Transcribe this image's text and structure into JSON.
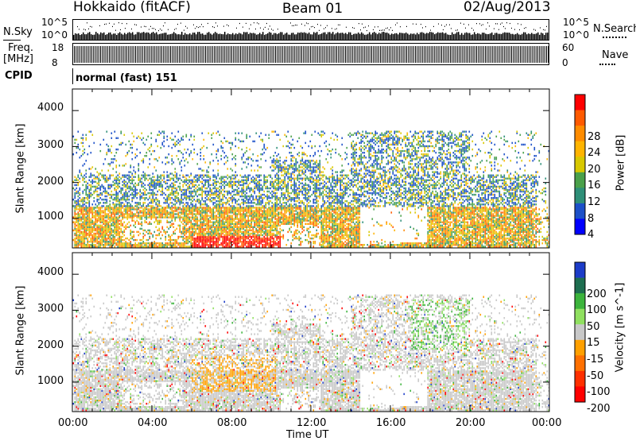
{
  "header": {
    "station": "Hokkaido (fitACF)",
    "beam": "Beam 01",
    "date": "02/Aug/2013"
  },
  "aux_panels": {
    "nsky_label": "N.Sky",
    "nsearch_label": "N.Search",
    "nsky_ticks": [
      "10^5",
      "10^0"
    ],
    "nsearch_ticks": [
      "10^5",
      "10^0"
    ],
    "freq_label_top": "Freq.",
    "freq_label_unit": "[MHz]",
    "freq_ticks": [
      "18",
      "8"
    ],
    "nave_label": "Nave",
    "nave_ticks": [
      "60",
      "0"
    ],
    "cpid_label": "CPID",
    "cpid_text": "normal (fast) 151"
  },
  "axes": {
    "ylabel": "Slant Range [km]",
    "yticks": [
      "4000",
      "3000",
      "2000",
      "1000"
    ],
    "xticks": [
      "00:00",
      "04:00",
      "08:00",
      "12:00",
      "16:00",
      "20:00",
      "00:00"
    ],
    "xlabel": "Time UT"
  },
  "power_scale": {
    "title": "Power [dB]",
    "ticks": [
      "28",
      "24",
      "20",
      "16",
      "12",
      "8",
      "4"
    ],
    "colors": [
      "#ff0000",
      "#ff5a00",
      "#ff8c00",
      "#ffb400",
      "#d8c800",
      "#4aa04a",
      "#2e8f78",
      "#1c50c8",
      "#0000ff"
    ]
  },
  "velocity_scale": {
    "title": "Velocity [m s^-1]",
    "ticks": [
      "200",
      "100",
      "50",
      "15",
      "-15",
      "-50",
      "-100",
      "-200"
    ],
    "colors": [
      "#1c3cc8",
      "#1e6e50",
      "#3cb43c",
      "#90e060",
      "#c8c8c8",
      "#ffa000",
      "#ff7000",
      "#ff3000",
      "#ff0000"
    ]
  },
  "chart_data": [
    {
      "type": "heatmap",
      "title": "Power",
      "xlabel": "Time UT",
      "ylabel": "Slant Range [km]",
      "xlim": [
        0,
        24
      ],
      "ylim": [
        180,
        4600
      ],
      "colorbar_label": "Power [dB]",
      "colorbar_range": [
        0,
        30
      ],
      "regions": [
        {
          "t0": 0.0,
          "t1": 24.0,
          "r0": 300,
          "r1": 1300,
          "level": "16-24 dB"
        },
        {
          "t0": 6.5,
          "t1": 10.0,
          "r0": 200,
          "r1": 500,
          "level": "28 dB"
        },
        {
          "t0": 0.0,
          "t1": 24.0,
          "r0": 1300,
          "r1": 2200,
          "level": "4-12 dB"
        },
        {
          "t0": 14.0,
          "t1": 20.0,
          "r0": 1600,
          "r1": 3400,
          "level": "4-12 dB"
        }
      ]
    },
    {
      "type": "heatmap",
      "title": "Velocity",
      "xlabel": "Time UT",
      "ylabel": "Slant Range [km]",
      "xlim": [
        0,
        24
      ],
      "ylim": [
        180,
        4600
      ],
      "colorbar_label": "Velocity [m s^-1]",
      "colorbar_range": [
        -250,
        250
      ],
      "regions": [
        {
          "t0": 0.0,
          "t1": 24.0,
          "r0": 300,
          "r1": 2000,
          "level": "-15 to 15 m/s"
        },
        {
          "t0": 6.0,
          "t1": 10.0,
          "r0": 900,
          "r1": 1600,
          "level": "-50 m/s"
        },
        {
          "t0": 17.5,
          "t1": 19.5,
          "r0": 2000,
          "r1": 3300,
          "level": "50 m/s"
        }
      ]
    }
  ]
}
